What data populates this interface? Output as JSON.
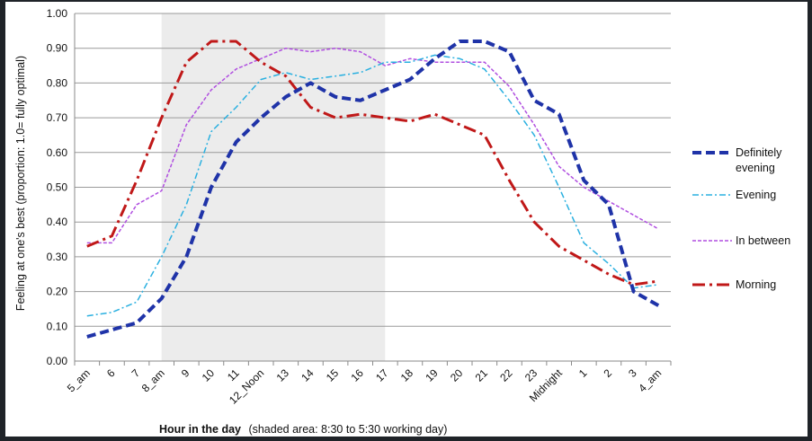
{
  "chart_data": {
    "type": "line",
    "ylabel": "Feeling at one's best (proportion: 1.0= fully optimal)",
    "xlabel_bold": "Hour in the day",
    "xlabel_note": "(shaded area: 8:30 to 5:30 working day)",
    "ylim": [
      0,
      1.0
    ],
    "yticks": [
      "0.00",
      "0.10",
      "0.20",
      "0.30",
      "0.40",
      "0.50",
      "0.60",
      "0.70",
      "0.80",
      "0.90",
      "1.00"
    ],
    "grid": true,
    "shaded_span": [
      3.5,
      12.5
    ],
    "categories": [
      "5_am",
      "6",
      "7",
      "8_am",
      "9",
      "10",
      "11",
      "12_Noon",
      "13",
      "14",
      "15",
      "16",
      "17",
      "18",
      "19",
      "20",
      "21",
      "22",
      "23",
      "Midnight",
      "1",
      "2",
      "3",
      "4_am"
    ],
    "legend_position": "right",
    "series": [
      {
        "name": "Definitely evening",
        "name_lines": [
          "Definitely",
          "evening"
        ],
        "color": "#1f33a8",
        "style": "dashed-bold",
        "values": [
          0.07,
          0.09,
          0.11,
          0.18,
          0.3,
          0.5,
          0.63,
          0.7,
          0.76,
          0.8,
          0.76,
          0.75,
          0.78,
          0.81,
          0.87,
          0.92,
          0.92,
          0.89,
          0.75,
          0.71,
          0.52,
          0.45,
          0.2,
          0.16
        ]
      },
      {
        "name": "Evening",
        "name_lines": [
          "Evening"
        ],
        "color": "#2ab0e0",
        "style": "dashdot",
        "values": [
          0.13,
          0.14,
          0.17,
          0.3,
          0.45,
          0.66,
          0.73,
          0.81,
          0.83,
          0.81,
          0.82,
          0.83,
          0.86,
          0.86,
          0.88,
          0.87,
          0.84,
          0.75,
          0.65,
          0.5,
          0.34,
          0.28,
          0.21,
          0.22
        ]
      },
      {
        "name": "In between",
        "name_lines": [
          "In between"
        ],
        "color": "#b04fe0",
        "style": "dotted",
        "values": [
          0.34,
          0.34,
          0.45,
          0.49,
          0.68,
          0.78,
          0.84,
          0.87,
          0.9,
          0.89,
          0.9,
          0.89,
          0.85,
          0.87,
          0.86,
          0.86,
          0.86,
          0.79,
          0.68,
          0.56,
          0.5,
          0.46,
          0.42,
          0.38
        ]
      },
      {
        "name": "Morning",
        "name_lines": [
          "Morning"
        ],
        "color": "#c01818",
        "style": "dashdot-bold",
        "values": [
          0.33,
          0.36,
          0.52,
          0.7,
          0.86,
          0.92,
          0.92,
          0.86,
          0.82,
          0.73,
          0.7,
          0.71,
          0.7,
          0.69,
          0.71,
          0.68,
          0.65,
          0.52,
          0.4,
          0.33,
          0.29,
          0.25,
          0.22,
          0.23
        ]
      }
    ]
  }
}
